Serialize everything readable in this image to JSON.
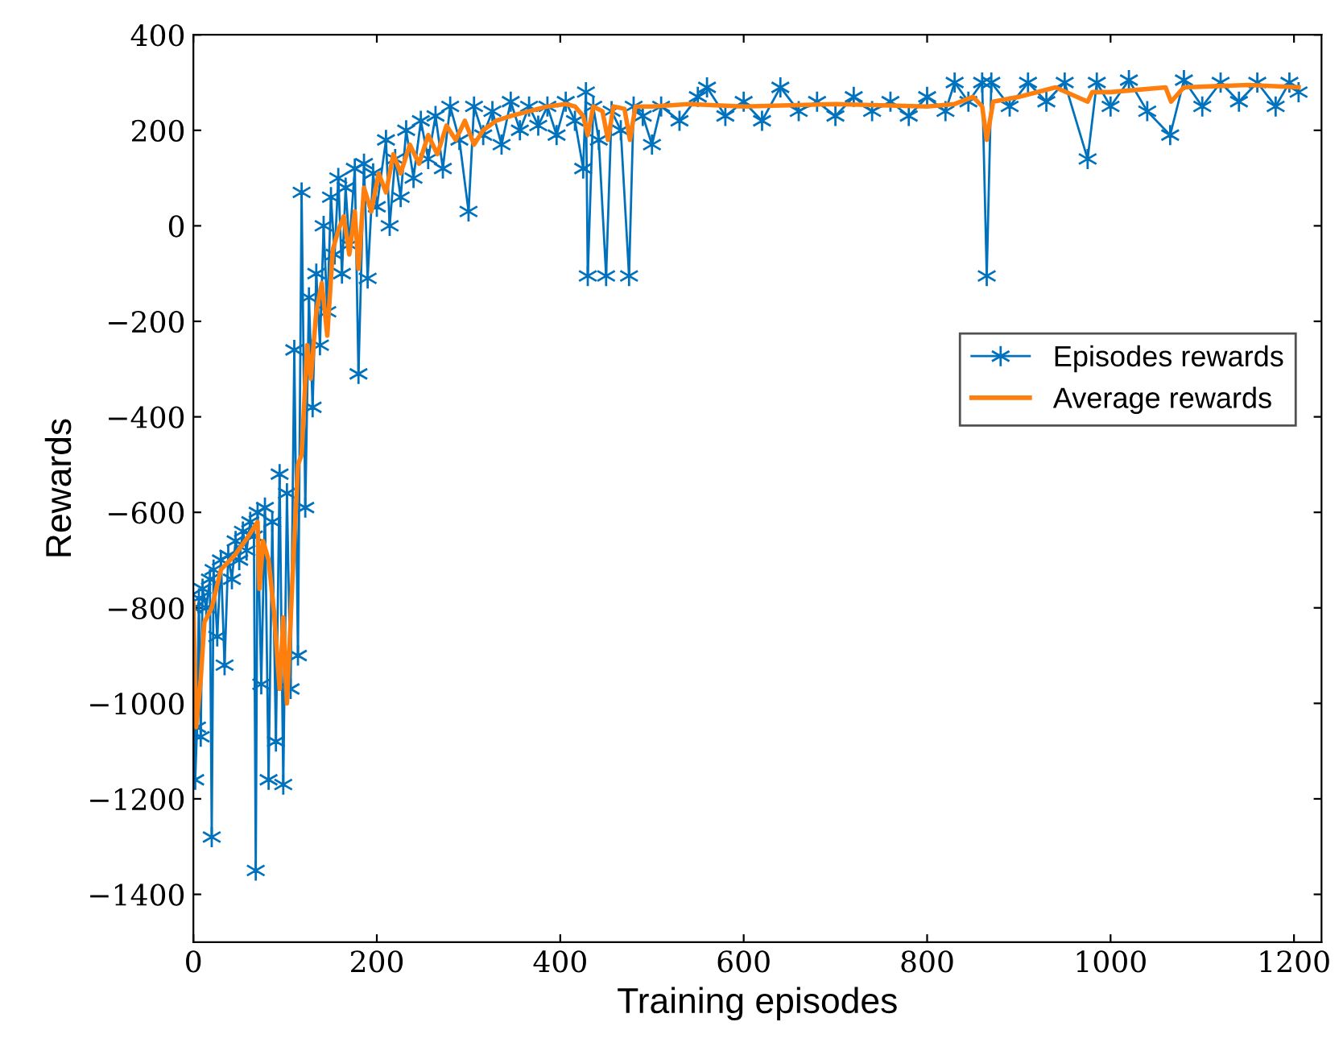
{
  "chart_data": {
    "type": "line",
    "xlabel": "Training episodes",
    "ylabel": "Rewards",
    "xlim": [
      0,
      1230
    ],
    "ylim": [
      -1500,
      400
    ],
    "xticks": [
      0,
      200,
      400,
      600,
      800,
      1000,
      1200
    ],
    "yticks": [
      {
        "value": -1400,
        "label": "−1400"
      },
      {
        "value": -1200,
        "label": "−1200"
      },
      {
        "value": -1000,
        "label": "−1000"
      },
      {
        "value": -800,
        "label": "−800"
      },
      {
        "value": -600,
        "label": "−600"
      },
      {
        "value": -400,
        "label": "−400"
      },
      {
        "value": -200,
        "label": "−200"
      },
      0,
      200,
      400
    ],
    "grid": false,
    "legend": "right",
    "series": [
      {
        "name": "Episodes rewards",
        "color": "#0072bd",
        "marker": "cross",
        "x": [
          0,
          2,
          4,
          6,
          8,
          10,
          14,
          18,
          20,
          22,
          26,
          30,
          34,
          38,
          42,
          46,
          50,
          54,
          58,
          62,
          66,
          68,
          70,
          74,
          78,
          82,
          86,
          90,
          94,
          98,
          102,
          106,
          110,
          114,
          118,
          122,
          126,
          130,
          134,
          138,
          142,
          146,
          150,
          154,
          158,
          162,
          166,
          170,
          176,
          180,
          186,
          190,
          196,
          200,
          210,
          214,
          220,
          226,
          232,
          240,
          248,
          256,
          264,
          272,
          280,
          290,
          300,
          306,
          316,
          326,
          336,
          346,
          356,
          366,
          376,
          386,
          396,
          406,
          416,
          425,
          428,
          430,
          436,
          442,
          450,
          456,
          466,
          475,
          480,
          490,
          500,
          510,
          530,
          550,
          560,
          580,
          600,
          620,
          640,
          660,
          680,
          700,
          720,
          740,
          760,
          780,
          800,
          820,
          830,
          845,
          860,
          865,
          870,
          890,
          910,
          930,
          950,
          975,
          985,
          1000,
          1020,
          1040,
          1065,
          1080,
          1100,
          1120,
          1140,
          1160,
          1180,
          1195,
          1205
        ],
        "values": [
          -800,
          -1160,
          -1050,
          -780,
          -1070,
          -760,
          -800,
          -740,
          -1280,
          -720,
          -860,
          -700,
          -920,
          -690,
          -740,
          -660,
          -700,
          -640,
          -680,
          -620,
          -650,
          -1350,
          -600,
          -960,
          -590,
          -1160,
          -620,
          -1080,
          -520,
          -1170,
          -560,
          -970,
          -260,
          -900,
          70,
          -590,
          -150,
          -380,
          -100,
          -250,
          0,
          -180,
          60,
          -60,
          100,
          -100,
          80,
          -40,
          120,
          -310,
          130,
          -110,
          110,
          40,
          180,
          0,
          140,
          60,
          200,
          100,
          220,
          140,
          230,
          120,
          250,
          180,
          30,
          250,
          190,
          240,
          170,
          260,
          200,
          250,
          210,
          250,
          190,
          260,
          220,
          120,
          280,
          -105,
          250,
          180,
          -105,
          240,
          200,
          -105,
          250,
          230,
          170,
          250,
          220,
          270,
          290,
          230,
          260,
          220,
          290,
          240,
          260,
          230,
          270,
          240,
          260,
          230,
          270,
          240,
          300,
          260,
          300,
          -105,
          300,
          250,
          300,
          260,
          300,
          140,
          300,
          250,
          305,
          240,
          190,
          305,
          250,
          300,
          260,
          300,
          250,
          300,
          280
        ]
      },
      {
        "name": "Average rewards",
        "color": "#ff7f0e",
        "marker": "none",
        "x": [
          0,
          3,
          8,
          12,
          20,
          30,
          45,
          60,
          70,
          72,
          76,
          82,
          88,
          94,
          98,
          102,
          108,
          114,
          118,
          124,
          128,
          134,
          140,
          146,
          152,
          158,
          164,
          170,
          176,
          180,
          186,
          194,
          202,
          210,
          218,
          226,
          236,
          246,
          256,
          266,
          276,
          286,
          296,
          306,
          316,
          330,
          346,
          366,
          386,
          406,
          416,
          425,
          430,
          436,
          446,
          452,
          458,
          470,
          476,
          482,
          500,
          540,
          600,
          700,
          800,
          830,
          850,
          860,
          865,
          872,
          900,
          940,
          975,
          980,
          1000,
          1060,
          1066,
          1080,
          1150,
          1205
        ],
        "values": [
          -790,
          -1050,
          -950,
          -830,
          -800,
          -720,
          -690,
          -650,
          -620,
          -760,
          -660,
          -700,
          -810,
          -970,
          -820,
          -1000,
          -740,
          -500,
          -480,
          -250,
          -320,
          -180,
          -120,
          -230,
          -50,
          -10,
          20,
          -60,
          30,
          -90,
          80,
          30,
          110,
          70,
          150,
          110,
          170,
          130,
          190,
          150,
          210,
          180,
          220,
          170,
          200,
          220,
          230,
          240,
          250,
          255,
          250,
          230,
          190,
          250,
          240,
          180,
          250,
          245,
          180,
          250,
          250,
          255,
          250,
          255,
          250,
          255,
          270,
          250,
          180,
          260,
          270,
          290,
          260,
          280,
          280,
          290,
          260,
          290,
          295,
          290
        ]
      }
    ]
  }
}
